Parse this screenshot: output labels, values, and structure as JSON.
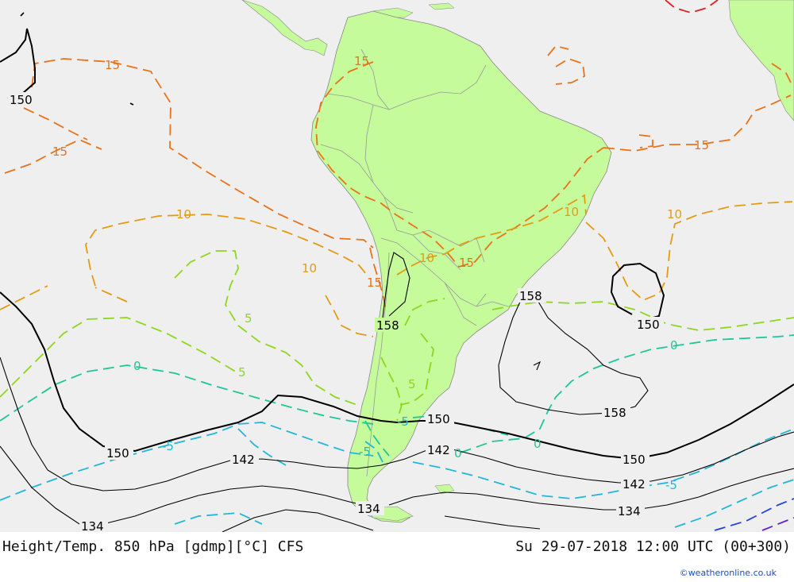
{
  "footer": {
    "left_title": "Height/Temp. 850 hPa [gdmp][°C] CFS",
    "right_title": "Su 29-07-2018 12:00 UTC (00+300)",
    "credit": "©weatheronline.co.uk"
  },
  "colors": {
    "ocean": "#efefef",
    "land_continent": "#c6fb9c",
    "height_contour": "#000000",
    "temp_15": "#e8731a",
    "temp_10": "#e59a14",
    "temp_5": "#8ed61f",
    "temp_0": "#1ec79a",
    "temp_minus5": "#22b7d6",
    "temp_cold": "#2244dd"
  },
  "height_labels": [
    "150",
    "150",
    "150",
    "150",
    "150",
    "158",
    "158",
    "158",
    "142",
    "142",
    "142",
    "134",
    "134",
    "134"
  ],
  "temp_labels": {
    "t15": [
      "15",
      "15",
      "15",
      "15",
      "15",
      "15"
    ],
    "t10": [
      "10",
      "10",
      "10",
      "10",
      "10"
    ],
    "t5": [
      "5",
      "5",
      "5"
    ],
    "t0": [
      "0",
      "0",
      "0",
      "0"
    ],
    "tm5": [
      "-5",
      "-5",
      "-5",
      "-5"
    ]
  }
}
